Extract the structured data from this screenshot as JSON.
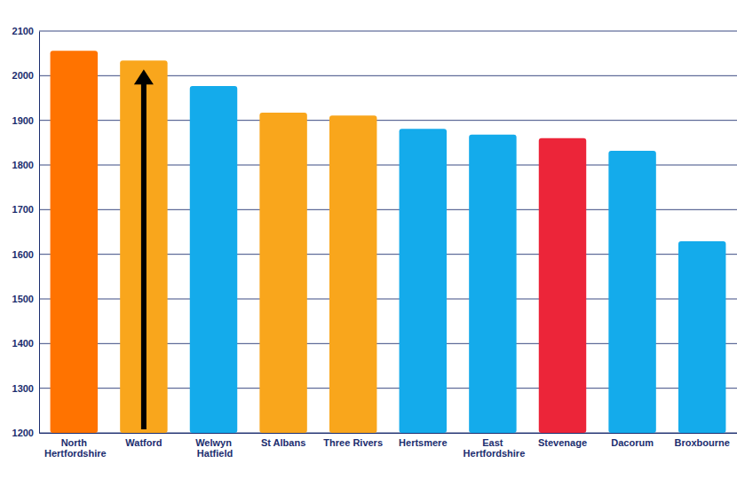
{
  "chart_data": {
    "type": "bar",
    "categories": [
      "North Hertfordshire",
      "Watford",
      "Welwyn Hatfield",
      "St Albans",
      "Three Rivers",
      "Hertsmere",
      "East Hertfordshire",
      "Stevenage",
      "Dacorum",
      "Broxbourne"
    ],
    "values": [
      2056,
      2034,
      1977,
      1917,
      1911,
      1881,
      1868,
      1860,
      1832,
      1629
    ],
    "colors": [
      "#ff7300",
      "#f9a61c",
      "#14abeb",
      "#f9a61c",
      "#f9a61c",
      "#14abeb",
      "#14abeb",
      "#ec2539",
      "#14abeb",
      "#14abeb"
    ],
    "ylim": [
      1200,
      2100
    ],
    "yticks": [
      1200,
      1300,
      1400,
      1500,
      1600,
      1700,
      1800,
      1900,
      2000,
      2100
    ],
    "grid": true
  }
}
